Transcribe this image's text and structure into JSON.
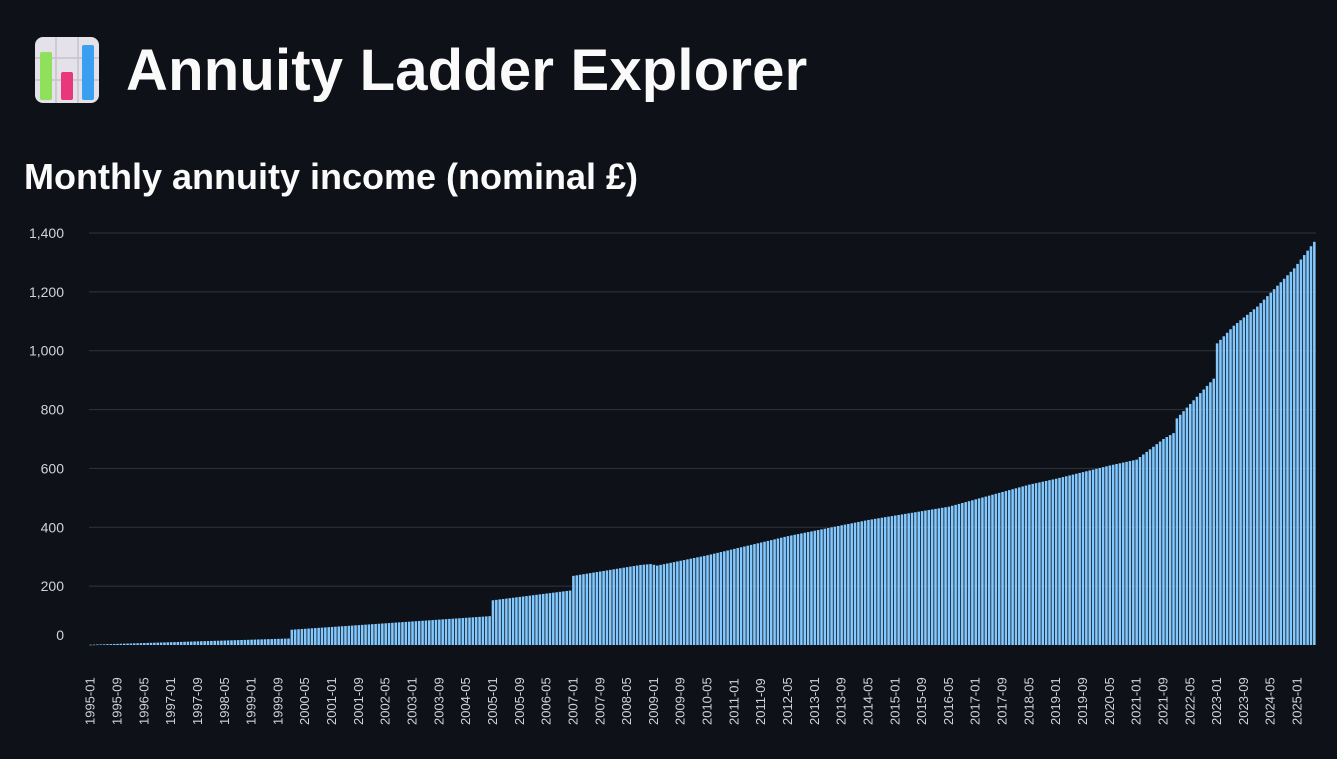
{
  "app": {
    "title": "Annuity Ladder Explorer",
    "icon": "bar-chart-icon"
  },
  "chart_data": {
    "type": "bar",
    "title": "Monthly annuity income (nominal £)",
    "xlabel": "",
    "ylabel": "",
    "ylim": [
      0,
      1400
    ],
    "yticks": [
      0,
      200,
      400,
      600,
      800,
      1000,
      1200,
      1400
    ],
    "ytick_labels": [
      "0",
      "200",
      "400",
      "600",
      "800",
      "1,000",
      "1,200",
      "1,400"
    ],
    "x_start": "1995-01",
    "x_end": "2025-06",
    "xtick_labels": [
      "1995-01",
      "1995-09",
      "1996-05",
      "1997-01",
      "1997-09",
      "1998-05",
      "1999-01",
      "1999-09",
      "2000-05",
      "2001-01",
      "2001-09",
      "2002-05",
      "2003-01",
      "2003-09",
      "2004-05",
      "2005-01",
      "2005-09",
      "2006-05",
      "2007-01",
      "2007-09",
      "2008-05",
      "2009-01",
      "2009-09",
      "2010-05",
      "2011-01",
      "2011-09",
      "2012-05",
      "2013-01",
      "2013-09",
      "2014-05",
      "2015-01",
      "2015-09",
      "2016-05",
      "2017-01",
      "2017-09",
      "2018-05",
      "2019-01",
      "2019-09",
      "2020-05",
      "2021-01",
      "2021-09",
      "2022-05",
      "2023-01",
      "2023-09",
      "2024-05",
      "2025-01"
    ],
    "bar_color": "#83c9ff",
    "grid": true,
    "anchors": [
      [
        "1995-01",
        1
      ],
      [
        "1999-12",
        22
      ],
      [
        "2000-01",
        52
      ],
      [
        "2004-12",
        98
      ],
      [
        "2005-01",
        152
      ],
      [
        "2006-12",
        185
      ],
      [
        "2007-01",
        235
      ],
      [
        "2008-09",
        272
      ],
      [
        "2008-12",
        275
      ],
      [
        "2009-02",
        270
      ],
      [
        "2010-05",
        305
      ],
      [
        "2012-05",
        370
      ],
      [
        "2014-05",
        425
      ],
      [
        "2016-05",
        470
      ],
      [
        "2018-05",
        545
      ],
      [
        "2019-01",
        565
      ],
      [
        "2020-05",
        610
      ],
      [
        "2021-01",
        630
      ],
      [
        "2021-09",
        700
      ],
      [
        "2021-12",
        720
      ],
      [
        "2022-01",
        770
      ],
      [
        "2022-12",
        905
      ],
      [
        "2023-01",
        1025
      ],
      [
        "2023-06",
        1085
      ],
      [
        "2024-01",
        1150
      ],
      [
        "2024-12",
        1280
      ],
      [
        "2025-06",
        1370
      ]
    ]
  }
}
